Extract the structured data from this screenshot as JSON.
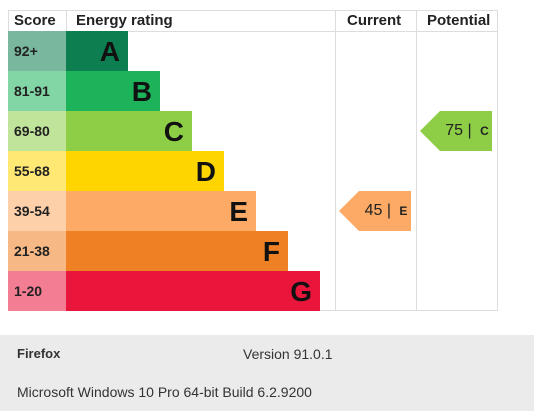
{
  "chart_data": {
    "type": "table",
    "headers": {
      "score": "Score",
      "energy_rating": "Energy rating",
      "current": "Current",
      "potential": "Potential"
    },
    "bands": [
      {
        "score": "92+",
        "letter": "A",
        "color": "#0c7e4f"
      },
      {
        "score": "81-91",
        "letter": "B",
        "color": "#1cb35a"
      },
      {
        "score": "69-80",
        "letter": "C",
        "color": "#8dce46"
      },
      {
        "score": "55-68",
        "letter": "D",
        "color": "#ffd500"
      },
      {
        "score": "39-54",
        "letter": "E",
        "color": "#fcaa65"
      },
      {
        "score": "21-38",
        "letter": "F",
        "color": "#ef8023"
      },
      {
        "score": "1-20",
        "letter": "G",
        "color": "#e9153b"
      }
    ],
    "current": {
      "value": "45",
      "letter": "E",
      "color": "#fcaa65"
    },
    "potential": {
      "value": "75",
      "letter": "C",
      "color": "#8dce46"
    }
  },
  "footer": {
    "browser_name": "Firefox",
    "version": "Version 91.0.1",
    "os": "Microsoft Windows 10 Pro 64-bit Build 6.2.9200"
  }
}
